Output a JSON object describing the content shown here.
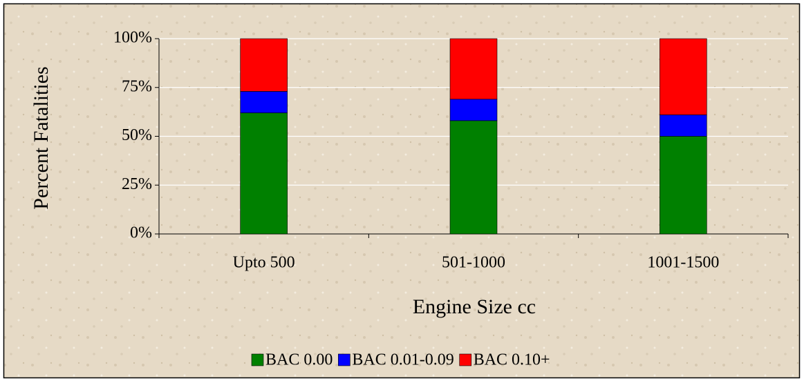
{
  "chart_data": {
    "type": "stacked_bar",
    "x_label": "Engine Size cc",
    "y_label": "Percent Fatalities",
    "categories": [
      "Upto 500",
      "501-1000",
      "1001-1500"
    ],
    "series": [
      {
        "name": "BAC 0.00",
        "color": "#008000",
        "values": [
          62,
          58,
          50
        ]
      },
      {
        "name": "BAC 0.01-0.09",
        "color": "#0000ff",
        "values": [
          11,
          11,
          11
        ]
      },
      {
        "name": "BAC 0.10+",
        "color": "#ff0000",
        "values": [
          27,
          31,
          39
        ]
      }
    ],
    "ylim": [
      0,
      100
    ],
    "yticks": [
      {
        "value": 0,
        "label": "0%"
      },
      {
        "value": 25,
        "label": "25%"
      },
      {
        "value": 50,
        "label": "50%"
      },
      {
        "value": 75,
        "label": "75%"
      },
      {
        "value": 100,
        "label": "100%"
      }
    ],
    "grid": true,
    "legend": "bottom"
  }
}
